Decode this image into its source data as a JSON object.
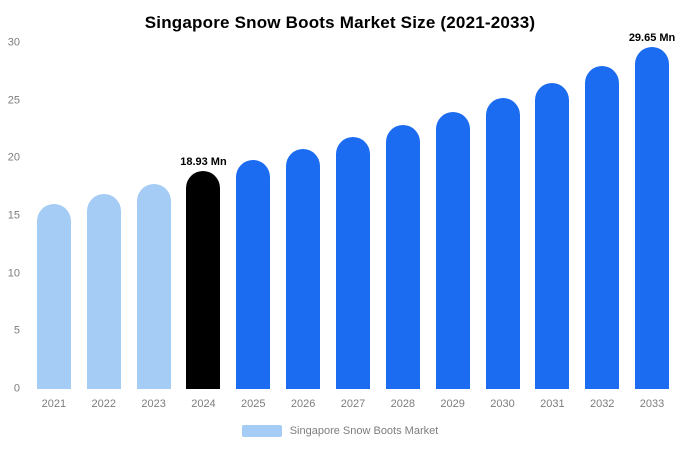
{
  "chart_data": {
    "type": "bar",
    "title": "Singapore Snow Boots Market Size (2021-2033)",
    "categories": [
      "2021",
      "2022",
      "2023",
      "2024",
      "2025",
      "2026",
      "2027",
      "2028",
      "2029",
      "2030",
      "2031",
      "2032",
      "2033"
    ],
    "values": [
      16.05,
      16.9,
      17.8,
      18.93,
      19.85,
      20.8,
      21.85,
      22.9,
      24.0,
      25.2,
      26.5,
      28.0,
      29.65
    ],
    "unit": "Mn",
    "xlabel": "",
    "ylabel": "",
    "ylim": [
      0,
      30
    ],
    "yticks": [
      0,
      5,
      10,
      15,
      20,
      25,
      30
    ],
    "grid": false,
    "bar_colors": [
      "#A5CCF5",
      "#A5CCF5",
      "#A5CCF5",
      "#000000",
      "#1B6CF0",
      "#1B6CF0",
      "#1B6CF0",
      "#1B6CF0",
      "#1B6CF0",
      "#1B6CF0",
      "#1B6CF0",
      "#1B6CF0",
      "#1B6CF0"
    ],
    "annotations": [
      {
        "category": "2024",
        "text": "18.93 Mn"
      },
      {
        "category": "2033",
        "text": "29.65 Mn"
      }
    ],
    "legend": {
      "position": "bottom",
      "items": [
        {
          "label": "Singapore Snow Boots Market",
          "color": "#A5CCF5"
        }
      ]
    }
  }
}
